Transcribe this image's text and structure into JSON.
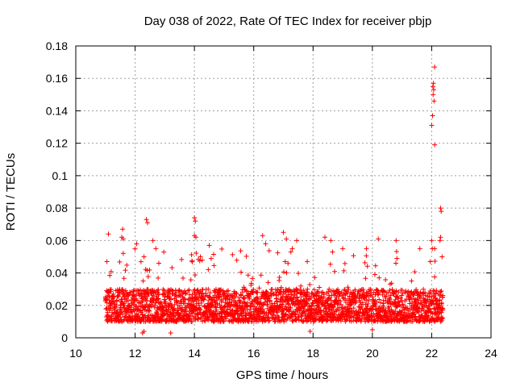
{
  "chart_data": {
    "type": "scatter",
    "title": "Day 038 of 2022, Rate Of TEC Index for receiver pbjp",
    "xlabel": "GPS time / hours",
    "ylabel": "ROTI / TECUs",
    "xlim": [
      10,
      24
    ],
    "ylim": [
      0,
      0.18
    ],
    "xticks": [
      10,
      12,
      14,
      16,
      18,
      20,
      22,
      24
    ],
    "xtick_labels": [
      "10",
      "12",
      "14",
      "16",
      "18",
      "20",
      "22",
      "24"
    ],
    "yticks": [
      0,
      0.02,
      0.04,
      0.06,
      0.08,
      0.1,
      0.12,
      0.14,
      0.16,
      0.18
    ],
    "ytick_labels": [
      "0",
      "0.02",
      "0.04",
      "0.06",
      "0.08",
      "0.1",
      "0.12",
      "0.14",
      "0.16",
      "0.18"
    ],
    "grid": true,
    "marker": "+",
    "marker_color": "#ff0000",
    "series": [
      {
        "name": "ROTI",
        "generator": {
          "x_start": 11.0,
          "x_end": 22.38,
          "x_step": 0.012,
          "baseline_min": 0.01,
          "baseline_max": 0.03,
          "spike_probability": 0.12,
          "spike_max": 0.055
        },
        "points": [
          {
            "x": 11.1,
            "y": 0.064
          },
          {
            "x": 11.05,
            "y": 0.047
          },
          {
            "x": 11.55,
            "y": 0.062
          },
          {
            "x": 11.58,
            "y": 0.067
          },
          {
            "x": 11.6,
            "y": 0.061
          },
          {
            "x": 12.05,
            "y": 0.058
          },
          {
            "x": 12.3,
            "y": 0.05
          },
          {
            "x": 12.38,
            "y": 0.073
          },
          {
            "x": 12.42,
            "y": 0.071
          },
          {
            "x": 12.6,
            "y": 0.06
          },
          {
            "x": 12.7,
            "y": 0.055
          },
          {
            "x": 12.8,
            "y": 0.046
          },
          {
            "x": 14.0,
            "y": 0.074
          },
          {
            "x": 14.03,
            "y": 0.072
          },
          {
            "x": 14.0,
            "y": 0.063
          },
          {
            "x": 14.05,
            "y": 0.062
          },
          {
            "x": 14.2,
            "y": 0.05
          },
          {
            "x": 14.5,
            "y": 0.057
          },
          {
            "x": 16.3,
            "y": 0.063
          },
          {
            "x": 16.4,
            "y": 0.058
          },
          {
            "x": 17.0,
            "y": 0.065
          },
          {
            "x": 17.1,
            "y": 0.061
          },
          {
            "x": 17.3,
            "y": 0.055
          },
          {
            "x": 17.45,
            "y": 0.06
          },
          {
            "x": 18.4,
            "y": 0.062
          },
          {
            "x": 18.6,
            "y": 0.06
          },
          {
            "x": 19.0,
            "y": 0.055
          },
          {
            "x": 19.8,
            "y": 0.055
          },
          {
            "x": 20.2,
            "y": 0.061
          },
          {
            "x": 20.8,
            "y": 0.06
          },
          {
            "x": 21.6,
            "y": 0.055
          },
          {
            "x": 21.95,
            "y": 0.047
          },
          {
            "x": 22.1,
            "y": 0.055
          },
          {
            "x": 22.0,
            "y": 0.131
          },
          {
            "x": 22.03,
            "y": 0.137
          },
          {
            "x": 22.05,
            "y": 0.15
          },
          {
            "x": 22.07,
            "y": 0.153
          },
          {
            "x": 22.04,
            "y": 0.155
          },
          {
            "x": 22.06,
            "y": 0.157
          },
          {
            "x": 22.08,
            "y": 0.146
          },
          {
            "x": 22.1,
            "y": 0.167
          },
          {
            "x": 22.1,
            "y": 0.119
          },
          {
            "x": 22.0,
            "y": 0.06
          },
          {
            "x": 22.02,
            "y": 0.055
          },
          {
            "x": 22.3,
            "y": 0.08
          },
          {
            "x": 22.32,
            "y": 0.078
          },
          {
            "x": 22.3,
            "y": 0.062
          },
          {
            "x": 22.28,
            "y": 0.06
          },
          {
            "x": 22.35,
            "y": 0.05
          },
          {
            "x": 12.3,
            "y": 0.004
          },
          {
            "x": 12.25,
            "y": 0.003
          },
          {
            "x": 13.2,
            "y": 0.003
          },
          {
            "x": 17.9,
            "y": 0.004
          },
          {
            "x": 20.0,
            "y": 0.005
          }
        ]
      }
    ]
  }
}
